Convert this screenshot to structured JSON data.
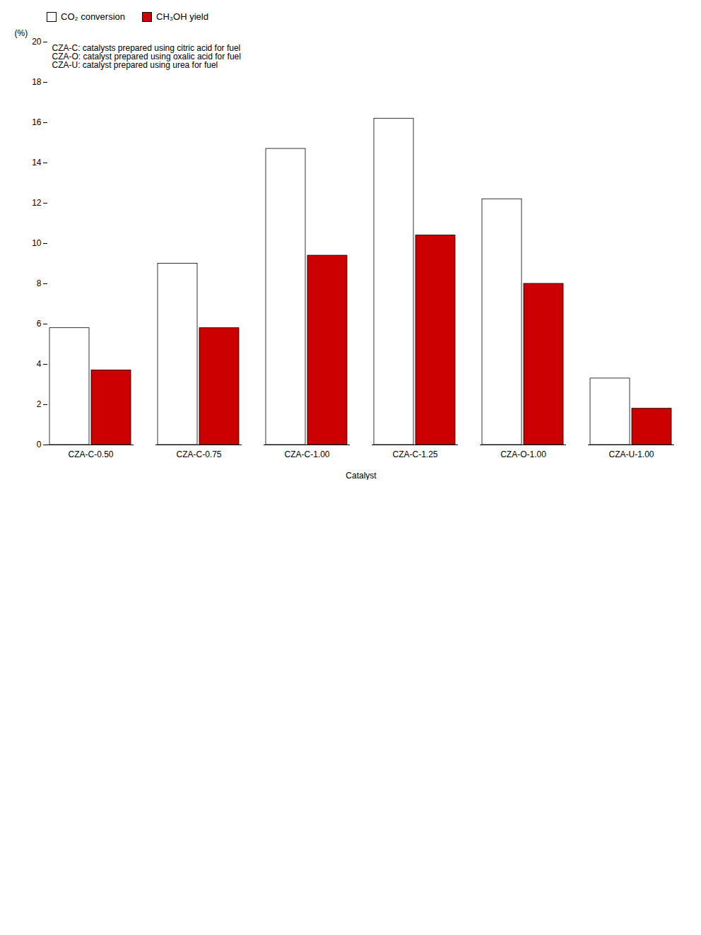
{
  "chart_data": {
    "type": "bar",
    "xlabel": "Catalyst",
    "ylabel": "(%)",
    "categories": [
      "CZA-C-0.50",
      "CZA-C-0.75",
      "CZA-C-1.00",
      "CZA-C-1.25",
      "CZA-O-1.00",
      "CZA-U-1.00"
    ],
    "series": [
      {
        "name": "CO₂ conversion",
        "color": "#FFFFFF",
        "values": [
          5.8,
          9.0,
          14.7,
          16.2,
          12.2,
          3.3
        ]
      },
      {
        "name": "CH₃OH yield",
        "color": "#CC0000",
        "values": [
          3.7,
          5.8,
          9.4,
          10.4,
          8.0,
          1.8
        ]
      }
    ],
    "ylim": [
      0,
      20
    ],
    "yticks": [
      0,
      2,
      4,
      6,
      8,
      10,
      12,
      14,
      16,
      18,
      20
    ],
    "grid": false,
    "legend": "top",
    "annotations": [
      "CZA-C: catalysts prepared using citric acid for fuel",
      "CZA-O: catalyst prepared using oxalic acid for fuel",
      "CZA-U: catalyst prepared using urea for fuel"
    ]
  }
}
